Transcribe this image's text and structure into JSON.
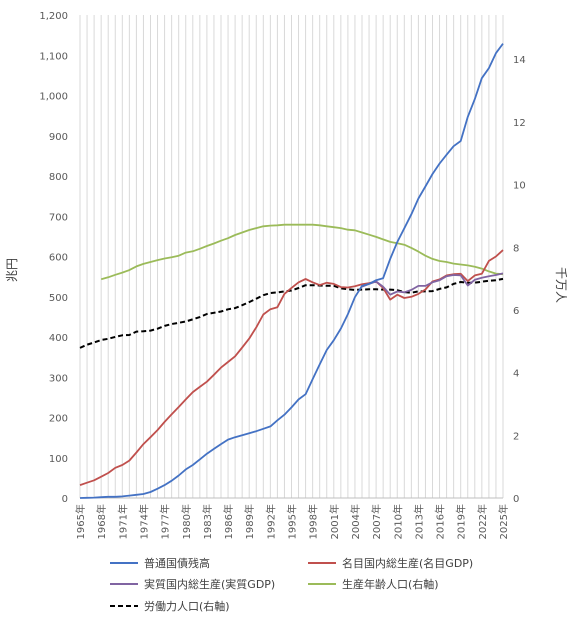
{
  "chart_data": {
    "type": "line",
    "title": "",
    "ylabel_left": "兆円",
    "ylabel_right": "千万人",
    "x_start_year": 1965,
    "x_end_year": 2025,
    "x_tick_labels": [
      "1965年",
      "1968年",
      "1971年",
      "1974年",
      "1977年",
      "1980年",
      "1983年",
      "1986年",
      "1989年",
      "1992年",
      "1995年",
      "1998年",
      "2001年",
      "2004年",
      "2007年",
      "2010年",
      "2013年",
      "2016年",
      "2019年",
      "2022年",
      "2025年"
    ],
    "ylim_left": [
      0,
      1200
    ],
    "yticks_left": [
      "0",
      "100",
      "200",
      "300",
      "400",
      "500",
      "600",
      "700",
      "800",
      "900",
      "1,000",
      "1,100",
      "1,200"
    ],
    "ylim_right": [
      0,
      15.41
    ],
    "yticks_right": [
      "0",
      "2",
      "4",
      "6",
      "8",
      "10",
      "12",
      "14"
    ],
    "grid": "vertical-yearly",
    "legend_position": "bottom",
    "legend": [
      "普通国債残高",
      "名目国内総生産(名目GDP)",
      "実質国内総生産(実質GDP)",
      "生産年齢人口(右軸)",
      "労働力人口(右軸)"
    ],
    "series": [
      {
        "name": "普通国債残高",
        "axis": "left",
        "color": "#4472c4",
        "dash": "",
        "points": [
          [
            1965,
            0
          ],
          [
            1966,
            0.5
          ],
          [
            1967,
            1
          ],
          [
            1968,
            2
          ],
          [
            1969,
            3
          ],
          [
            1970,
            3
          ],
          [
            1971,
            4
          ],
          [
            1972,
            6
          ],
          [
            1973,
            8
          ],
          [
            1974,
            10
          ],
          [
            1975,
            15
          ],
          [
            1976,
            23
          ],
          [
            1977,
            32
          ],
          [
            1978,
            43
          ],
          [
            1979,
            56
          ],
          [
            1980,
            71
          ],
          [
            1981,
            82
          ],
          [
            1982,
            96
          ],
          [
            1983,
            110
          ],
          [
            1984,
            122
          ],
          [
            1985,
            134
          ],
          [
            1986,
            145
          ],
          [
            1987,
            151
          ],
          [
            1988,
            156
          ],
          [
            1989,
            161
          ],
          [
            1990,
            166
          ],
          [
            1991,
            172
          ],
          [
            1992,
            178
          ],
          [
            1993,
            193
          ],
          [
            1994,
            207
          ],
          [
            1995,
            225
          ],
          [
            1996,
            245
          ],
          [
            1997,
            258
          ],
          [
            1998,
            295
          ],
          [
            1999,
            332
          ],
          [
            2000,
            368
          ],
          [
            2001,
            392
          ],
          [
            2002,
            421
          ],
          [
            2003,
            457
          ],
          [
            2004,
            499
          ],
          [
            2005,
            527
          ],
          [
            2006,
            532
          ],
          [
            2007,
            541
          ],
          [
            2008,
            546
          ],
          [
            2009,
            594
          ],
          [
            2010,
            636
          ],
          [
            2011,
            670
          ],
          [
            2012,
            705
          ],
          [
            2013,
            744
          ],
          [
            2014,
            774
          ],
          [
            2015,
            805
          ],
          [
            2016,
            831
          ],
          [
            2017,
            853
          ],
          [
            2018,
            874
          ],
          [
            2019,
            887
          ],
          [
            2020,
            947
          ],
          [
            2021,
            991
          ],
          [
            2022,
            1043
          ],
          [
            2023,
            1068
          ],
          [
            2024,
            1105
          ],
          [
            2025,
            1129
          ]
        ]
      },
      {
        "name": "名目国内総生産(名目GDP)",
        "axis": "left",
        "color": "#c0504d",
        "dash": "",
        "points": [
          [
            1965,
            32
          ],
          [
            1966,
            38
          ],
          [
            1967,
            44
          ],
          [
            1968,
            53
          ],
          [
            1969,
            62
          ],
          [
            1970,
            75
          ],
          [
            1971,
            82
          ],
          [
            1972,
            93
          ],
          [
            1973,
            113
          ],
          [
            1974,
            134
          ],
          [
            1975,
            151
          ],
          [
            1976,
            169
          ],
          [
            1977,
            189
          ],
          [
            1978,
            208
          ],
          [
            1979,
            226
          ],
          [
            1980,
            245
          ],
          [
            1981,
            263
          ],
          [
            1982,
            276
          ],
          [
            1983,
            289
          ],
          [
            1984,
            306
          ],
          [
            1985,
            324
          ],
          [
            1986,
            338
          ],
          [
            1987,
            352
          ],
          [
            1988,
            374
          ],
          [
            1989,
            396
          ],
          [
            1990,
            424
          ],
          [
            1991,
            456
          ],
          [
            1992,
            469
          ],
          [
            1993,
            474
          ],
          [
            1994,
            507
          ],
          [
            1995,
            522
          ],
          [
            1996,
            536
          ],
          [
            1997,
            544
          ],
          [
            1998,
            536
          ],
          [
            1999,
            529
          ],
          [
            2000,
            535
          ],
          [
            2001,
            532
          ],
          [
            2002,
            524
          ],
          [
            2003,
            523
          ],
          [
            2004,
            526
          ],
          [
            2005,
            531
          ],
          [
            2006,
            534
          ],
          [
            2007,
            538
          ],
          [
            2008,
            522
          ],
          [
            2009,
            493
          ],
          [
            2010,
            505
          ],
          [
            2011,
            497
          ],
          [
            2012,
            500
          ],
          [
            2013,
            507
          ],
          [
            2014,
            518
          ],
          [
            2015,
            538
          ],
          [
            2016,
            543
          ],
          [
            2017,
            553
          ],
          [
            2018,
            556
          ],
          [
            2019,
            557
          ],
          [
            2020,
            539
          ],
          [
            2021,
            553
          ],
          [
            2022,
            557
          ],
          [
            2023,
            589
          ],
          [
            2024,
            600
          ],
          [
            2025,
            616
          ]
        ]
      },
      {
        "name": "実質国内総生産(実質GDP)",
        "axis": "left",
        "color": "#8064a2",
        "dash": "",
        "points": [
          [
            2005,
            525
          ],
          [
            2006,
            532
          ],
          [
            2007,
            538
          ],
          [
            2008,
            525
          ],
          [
            2009,
            505
          ],
          [
            2010,
            513
          ],
          [
            2011,
            511
          ],
          [
            2012,
            517
          ],
          [
            2013,
            527
          ],
          [
            2014,
            527
          ],
          [
            2015,
            536
          ],
          [
            2016,
            541
          ],
          [
            2017,
            551
          ],
          [
            2018,
            554
          ],
          [
            2019,
            553
          ],
          [
            2020,
            528
          ],
          [
            2021,
            542
          ],
          [
            2022,
            547
          ],
          [
            2023,
            551
          ],
          [
            2024,
            554
          ],
          [
            2025,
            558
          ]
        ]
      },
      {
        "name": "生産年齢人口(右軸)",
        "axis": "right",
        "color": "#9bbb59",
        "dash": "",
        "points": [
          [
            1968,
            6.98
          ],
          [
            1969,
            7.04
          ],
          [
            1970,
            7.12
          ],
          [
            1971,
            7.19
          ],
          [
            1972,
            7.27
          ],
          [
            1973,
            7.39
          ],
          [
            1974,
            7.47
          ],
          [
            1975,
            7.53
          ],
          [
            1976,
            7.59
          ],
          [
            1977,
            7.64
          ],
          [
            1978,
            7.68
          ],
          [
            1979,
            7.73
          ],
          [
            1980,
            7.83
          ],
          [
            1981,
            7.87
          ],
          [
            1982,
            7.95
          ],
          [
            1983,
            8.04
          ],
          [
            1984,
            8.12
          ],
          [
            1985,
            8.21
          ],
          [
            1986,
            8.29
          ],
          [
            1987,
            8.39
          ],
          [
            1988,
            8.47
          ],
          [
            1989,
            8.55
          ],
          [
            1990,
            8.61
          ],
          [
            1991,
            8.67
          ],
          [
            1992,
            8.69
          ],
          [
            1993,
            8.7
          ],
          [
            1994,
            8.72
          ],
          [
            1995,
            8.72
          ],
          [
            1996,
            8.72
          ],
          [
            1997,
            8.72
          ],
          [
            1998,
            8.72
          ],
          [
            1999,
            8.7
          ],
          [
            2000,
            8.67
          ],
          [
            2001,
            8.64
          ],
          [
            2002,
            8.61
          ],
          [
            2003,
            8.56
          ],
          [
            2004,
            8.54
          ],
          [
            2005,
            8.47
          ],
          [
            2006,
            8.4
          ],
          [
            2007,
            8.33
          ],
          [
            2008,
            8.25
          ],
          [
            2009,
            8.17
          ],
          [
            2010,
            8.13
          ],
          [
            2011,
            8.08
          ],
          [
            2012,
            7.98
          ],
          [
            2013,
            7.86
          ],
          [
            2014,
            7.73
          ],
          [
            2015,
            7.63
          ],
          [
            2016,
            7.56
          ],
          [
            2017,
            7.53
          ],
          [
            2018,
            7.48
          ],
          [
            2019,
            7.45
          ],
          [
            2020,
            7.42
          ],
          [
            2021,
            7.38
          ],
          [
            2022,
            7.32
          ],
          [
            2023,
            7.23
          ],
          [
            2024,
            7.16
          ],
          [
            2025,
            7.14
          ]
        ]
      },
      {
        "name": "労働力人口(右軸)",
        "axis": "right",
        "color": "#000000",
        "dash": "5,3",
        "points": [
          [
            1965,
            4.79
          ],
          [
            1966,
            4.89
          ],
          [
            1967,
            4.96
          ],
          [
            1968,
            5.04
          ],
          [
            1969,
            5.08
          ],
          [
            1970,
            5.14
          ],
          [
            1971,
            5.19
          ],
          [
            1972,
            5.2
          ],
          [
            1973,
            5.31
          ],
          [
            1974,
            5.32
          ],
          [
            1975,
            5.34
          ],
          [
            1976,
            5.4
          ],
          [
            1977,
            5.49
          ],
          [
            1978,
            5.55
          ],
          [
            1979,
            5.59
          ],
          [
            1980,
            5.63
          ],
          [
            1981,
            5.7
          ],
          [
            1982,
            5.77
          ],
          [
            1983,
            5.87
          ],
          [
            1984,
            5.91
          ],
          [
            1985,
            5.95
          ],
          [
            1986,
            6.02
          ],
          [
            1987,
            6.06
          ],
          [
            1988,
            6.15
          ],
          [
            1989,
            6.25
          ],
          [
            1990,
            6.36
          ],
          [
            1991,
            6.47
          ],
          [
            1992,
            6.54
          ],
          [
            1993,
            6.56
          ],
          [
            1994,
            6.59
          ],
          [
            1995,
            6.62
          ],
          [
            1996,
            6.7
          ],
          [
            1997,
            6.79
          ],
          [
            1998,
            6.79
          ],
          [
            1999,
            6.78
          ],
          [
            2000,
            6.77
          ],
          [
            2001,
            6.77
          ],
          [
            2002,
            6.69
          ],
          [
            2003,
            6.66
          ],
          [
            2004,
            6.64
          ],
          [
            2005,
            6.65
          ],
          [
            2006,
            6.66
          ],
          [
            2007,
            6.66
          ],
          [
            2008,
            6.65
          ],
          [
            2009,
            6.65
          ],
          [
            2010,
            6.63
          ],
          [
            2011,
            6.57
          ],
          [
            2012,
            6.55
          ],
          [
            2013,
            6.59
          ],
          [
            2014,
            6.59
          ],
          [
            2015,
            6.6
          ],
          [
            2016,
            6.67
          ],
          [
            2017,
            6.72
          ],
          [
            2018,
            6.83
          ],
          [
            2019,
            6.89
          ],
          [
            2020,
            6.87
          ],
          [
            2021,
            6.87
          ],
          [
            2022,
            6.9
          ],
          [
            2023,
            6.93
          ],
          [
            2024,
            6.95
          ],
          [
            2025,
            6.99
          ]
        ]
      }
    ]
  }
}
